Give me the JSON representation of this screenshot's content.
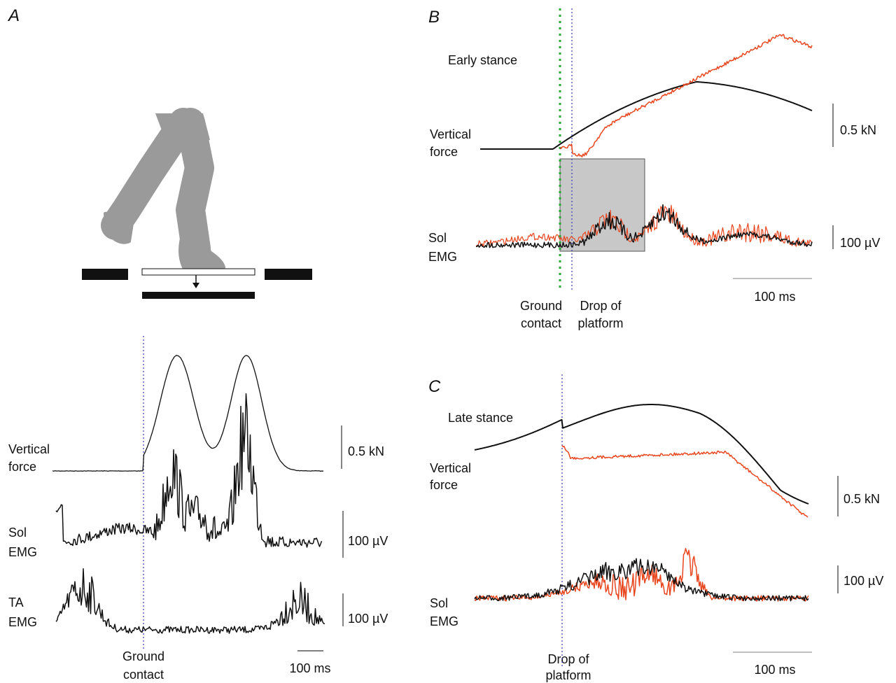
{
  "panels": {
    "a": {
      "label": "A",
      "force": [
        "Vertical",
        "force"
      ],
      "sol": [
        "Sol",
        "EMG"
      ],
      "ta": [
        "TA",
        "EMG"
      ],
      "force_scale": "0.5 kN",
      "sol_scale": "100 µV",
      "ta_scale": "100 µV",
      "event": [
        "Ground",
        "contact"
      ],
      "time_scale": "100 ms"
    },
    "b": {
      "label": "B",
      "phase": "Early stance",
      "force": [
        "Vertical",
        "force"
      ],
      "sol": [
        "Sol",
        "EMG"
      ],
      "force_scale": "0.5 kN",
      "sol_scale": "100 µV",
      "time_scale": "100 ms",
      "event1": [
        "Ground",
        "contact"
      ],
      "event2": [
        "Drop of",
        "platform"
      ]
    },
    "c": {
      "label": "C",
      "phase": "Late stance",
      "force": [
        "Vertical",
        "force"
      ],
      "sol": [
        "Sol",
        "EMG"
      ],
      "force_scale": "0.5 kN",
      "sol_scale": "100 µV",
      "time_scale": "100 ms",
      "event": [
        "Drop of",
        "platform"
      ]
    }
  }
}
